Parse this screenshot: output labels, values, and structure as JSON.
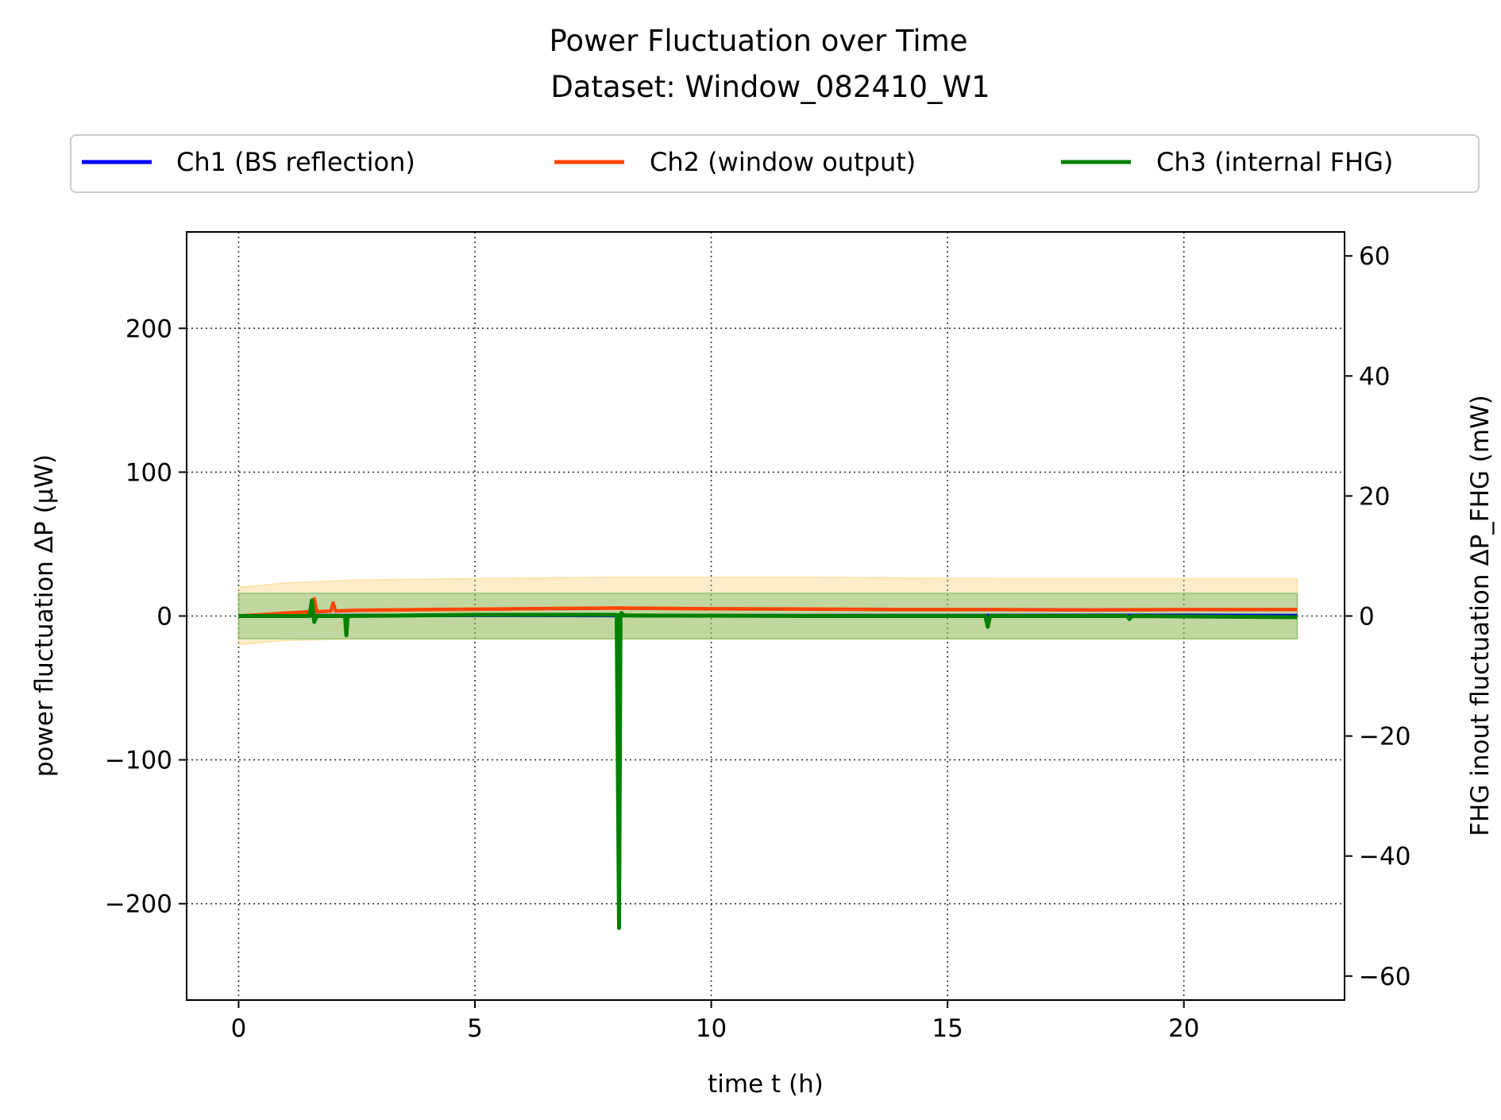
{
  "chart_data": {
    "type": "line",
    "title": "Power Fluctuation over Time",
    "subtitle": "Dataset: Window_082410_W1",
    "xlabel": "time t (h)",
    "ylabel": "power fluctuation ΔP (μW)",
    "ylabel_right": "FHG inout fluctuation ΔP_FHG (mW)",
    "xlim": [
      -1.1,
      23.4
    ],
    "ylim": [
      -267,
      267
    ],
    "ylim_right": [
      -64,
      64
    ],
    "xticks": [
      0,
      5,
      10,
      15,
      20
    ],
    "yticks": [
      -200,
      -100,
      0,
      100,
      200
    ],
    "yticks_right": [
      -60,
      -40,
      -20,
      0,
      20,
      40,
      60
    ],
    "xtick_labels": [
      "0",
      "5",
      "10",
      "15",
      "20"
    ],
    "ytick_labels": [
      "−200",
      "−100",
      "0",
      "100",
      "200"
    ],
    "ytick_labels_right": [
      "−60",
      "−40",
      "−20",
      "0",
      "20",
      "40",
      "60"
    ],
    "grid": true,
    "legend_position": "top, above plot",
    "series": [
      {
        "name": "Ch1 (BS reflection)",
        "color": "#0000ff",
        "axis": "left",
        "x": [
          0,
          2,
          5,
          10,
          15,
          20,
          22.4
        ],
        "y": [
          0,
          0.3,
          0.5,
          0.2,
          0.3,
          0.5,
          0.3
        ],
        "band": [
          [
            0,
            -15,
            15
          ],
          [
            22.4,
            -15,
            15
          ]
        ]
      },
      {
        "name": "Ch2 (window output)",
        "color": "#ff4500",
        "axis": "left",
        "x": [
          0,
          0.5,
          1.0,
          1.55,
          1.6,
          1.65,
          1.95,
          2.0,
          2.05,
          2.5,
          4,
          6,
          8,
          10,
          12,
          14,
          16,
          18,
          20,
          22.4
        ],
        "y": [
          0,
          1,
          2,
          3,
          12,
          3,
          3.5,
          9,
          3.5,
          4,
          4.5,
          5,
          5.5,
          5,
          4.8,
          4.5,
          4.5,
          4.2,
          4.5,
          4.5
        ],
        "band_color": "#ffcc66",
        "band": [
          [
            0,
            -20,
            20
          ],
          [
            1,
            -17,
            23
          ],
          [
            2.5,
            -16,
            25
          ],
          [
            5,
            -16,
            26
          ],
          [
            8,
            -16,
            27
          ],
          [
            12,
            -16,
            27
          ],
          [
            16,
            -16,
            26
          ],
          [
            20,
            -16,
            26
          ],
          [
            22.4,
            -16,
            26
          ]
        ]
      },
      {
        "name": "Ch3 (internal FHG)",
        "color": "#008000",
        "axis": "right",
        "x": [
          0,
          1.5,
          1.55,
          1.6,
          1.65,
          2.25,
          2.28,
          2.31,
          5,
          8.0,
          8.05,
          8.08,
          8.1,
          8.15,
          12,
          15.8,
          15.85,
          15.9,
          15.95,
          18.8,
          18.85,
          18.9,
          22.4
        ],
        "y": [
          0,
          0,
          2.6,
          -1,
          0,
          0,
          -3.2,
          0,
          0.2,
          0.2,
          -52,
          0.3,
          0.5,
          0.1,
          0,
          0,
          -1.8,
          0,
          0,
          0,
          -0.5,
          0,
          -0.2
        ],
        "band_color": "#4caf50",
        "band": [
          [
            0,
            -3.8,
            3.8
          ],
          [
            22.4,
            -3.8,
            3.8
          ]
        ]
      }
    ]
  }
}
